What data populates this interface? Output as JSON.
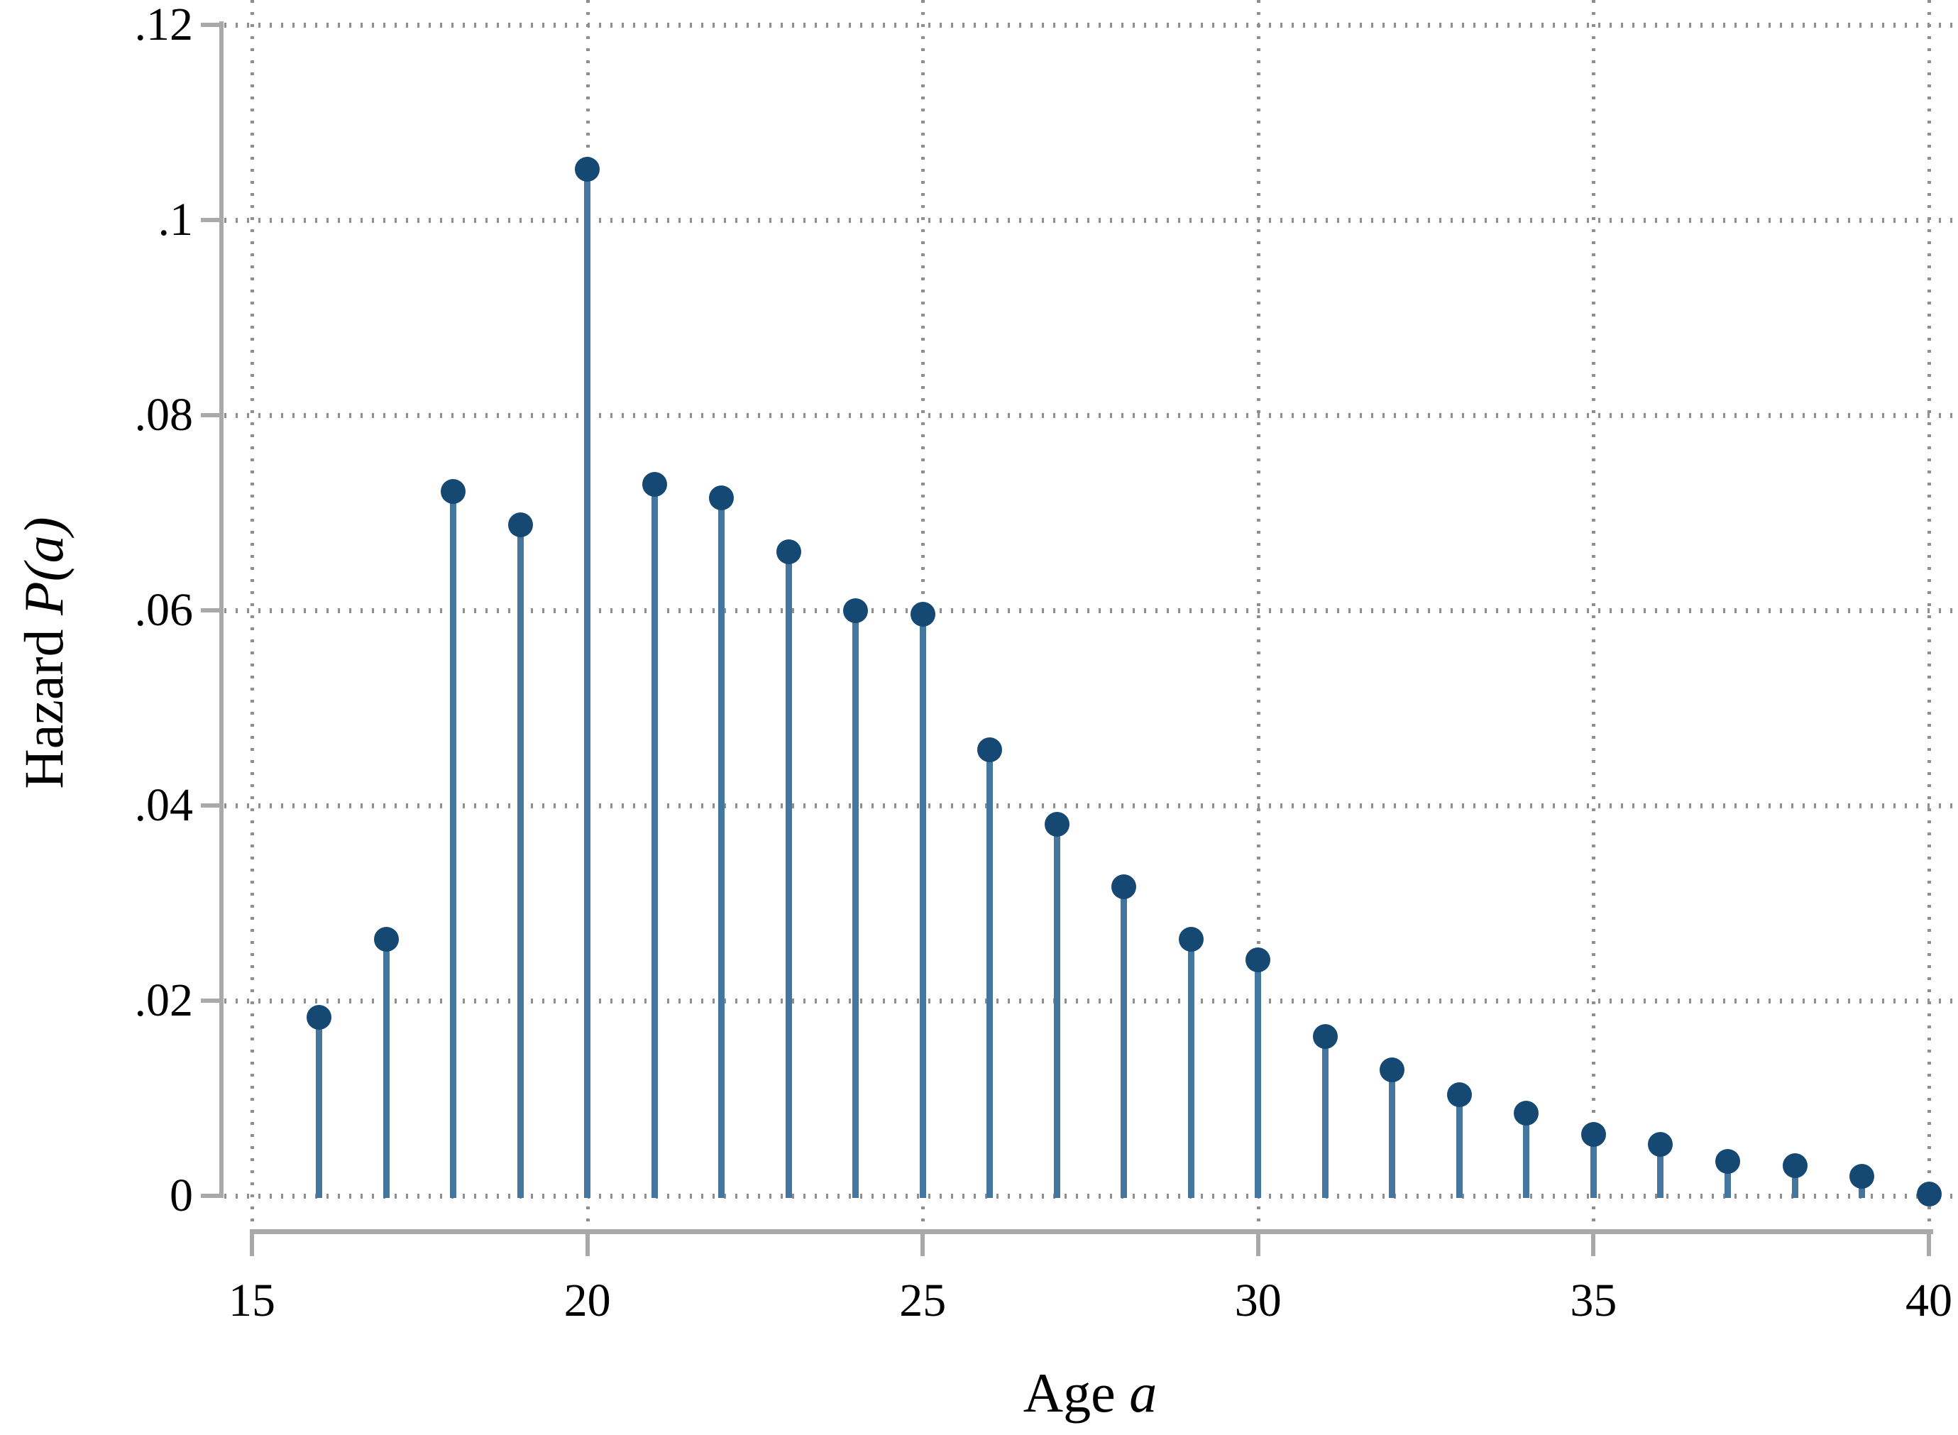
{
  "chart_data": {
    "type": "scatter",
    "variant": "stem-lollipop",
    "title": "",
    "xlabel": {
      "text": "Age a",
      "prefix": "Age ",
      "italic": "a"
    },
    "ylabel": {
      "text": "Hazard P(a)",
      "prefix": "Hazard ",
      "italic": "P(a)"
    },
    "x": [
      16,
      17,
      18,
      19,
      20,
      21,
      22,
      23,
      24,
      25,
      26,
      27,
      28,
      29,
      30,
      31,
      32,
      33,
      34,
      35,
      36,
      37,
      38,
      39,
      40
    ],
    "values": [
      0.0183,
      0.0263,
      0.0722,
      0.0688,
      0.1052,
      0.0729,
      0.0715,
      0.066,
      0.06,
      0.0596,
      0.0457,
      0.0381,
      0.0317,
      0.0263,
      0.0242,
      0.0163,
      0.0129,
      0.0104,
      0.0085,
      0.0063,
      0.0053,
      0.0035,
      0.0031,
      0.002,
      0.0002
    ],
    "xlim": [
      14.55,
      40.45
    ],
    "ylim": [
      0,
      0.122
    ],
    "xticks": [
      15,
      20,
      25,
      30,
      35,
      40
    ],
    "xtick_labels": [
      "15",
      "20",
      "25",
      "30",
      "35",
      "40"
    ],
    "yticks": [
      0,
      0.02,
      0.04,
      0.06,
      0.08,
      0.1,
      0.12
    ],
    "ytick_labels": [
      "0",
      ".02",
      ".04",
      ".06",
      ".08",
      ".1",
      ".12"
    ],
    "grid": "dotted both axes",
    "legend": "none",
    "marker_stems_baseline": 0,
    "colors": {
      "marker": "#154974",
      "stem": "#45769f",
      "axis": "#a9a9a9",
      "grid": "#8f8f8f",
      "text": "#000000",
      "background": "#ffffff"
    }
  }
}
